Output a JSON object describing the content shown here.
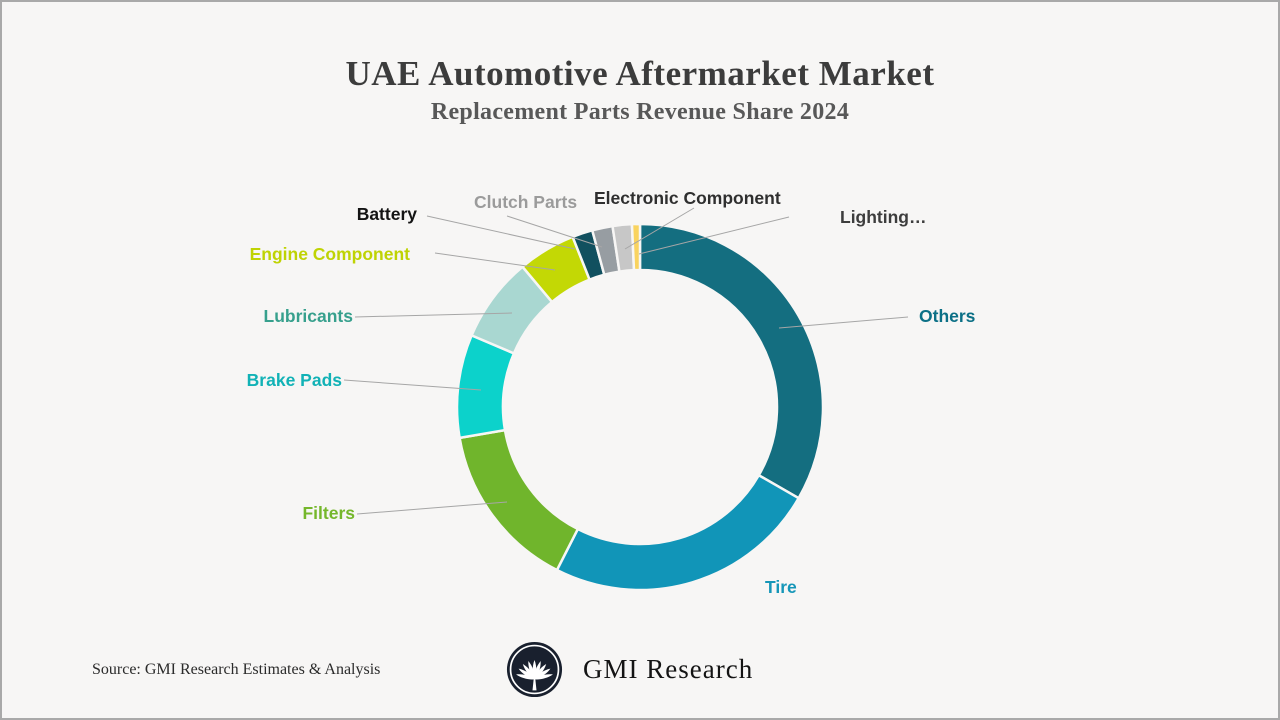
{
  "window": {
    "background": "#f7f6f5",
    "frame_border_color": "#a9a9a9",
    "leader_line_color": "#a6a6a6"
  },
  "header": {
    "title": "UAE Automotive Aftermarket Market",
    "subtitle": "Replacement Parts Revenue Share 2024",
    "title_color": "#3c3c3c",
    "subtitle_color": "#585858"
  },
  "chart_data": {
    "type": "pie",
    "variant": "donut",
    "title": "UAE Automotive Aftermarket Market",
    "subtitle": "Replacement Parts Revenue Share 2024",
    "start_angle_deg": 0,
    "direction": "clockwise",
    "values_unit": "percent",
    "values_note": "No numeric labels shown in chart; percent shares estimated from arc angles",
    "legend_position": "callout-labels",
    "segments": [
      {
        "label": "Others",
        "value": 33.3,
        "color": "#146e80",
        "label_color": "#0c7086"
      },
      {
        "label": "Tire",
        "value": 24.2,
        "color": "#1195b8",
        "label_color": "#1596b8"
      },
      {
        "label": "Filters",
        "value": 14.8,
        "color": "#70b52c",
        "label_color": "#75b72b"
      },
      {
        "label": "Brake Pads",
        "value": 9.1,
        "color": "#0cd2cb",
        "label_color": "#12b2b6"
      },
      {
        "label": "Lubricants",
        "value": 7.5,
        "color": "#a9d7d1",
        "label_color": "#37a08d"
      },
      {
        "label": "Engine Component",
        "value": 5.1,
        "color": "#c3d805",
        "label_color": "#bfd303"
      },
      {
        "label": "Battery",
        "value": 1.8,
        "color": "#11505f",
        "label_color": "#141414"
      },
      {
        "label": "Clutch Parts",
        "value": 1.8,
        "color": "#979da2",
        "label_color": "#9b9b9b"
      },
      {
        "label": "Electronic Component",
        "value": 1.7,
        "color": "#c7c7c7",
        "label_color": "#2f2f2f"
      },
      {
        "label": "Lighting…",
        "value": 0.7,
        "color": "#f9d35f",
        "label_color": "#3d3d3d"
      }
    ]
  },
  "footer": {
    "source": "Source: GMI Research Estimates & Analysis",
    "brand": "GMI Research",
    "logo_icon": "gmi-palm-logo",
    "logo_background": "#19202e"
  }
}
